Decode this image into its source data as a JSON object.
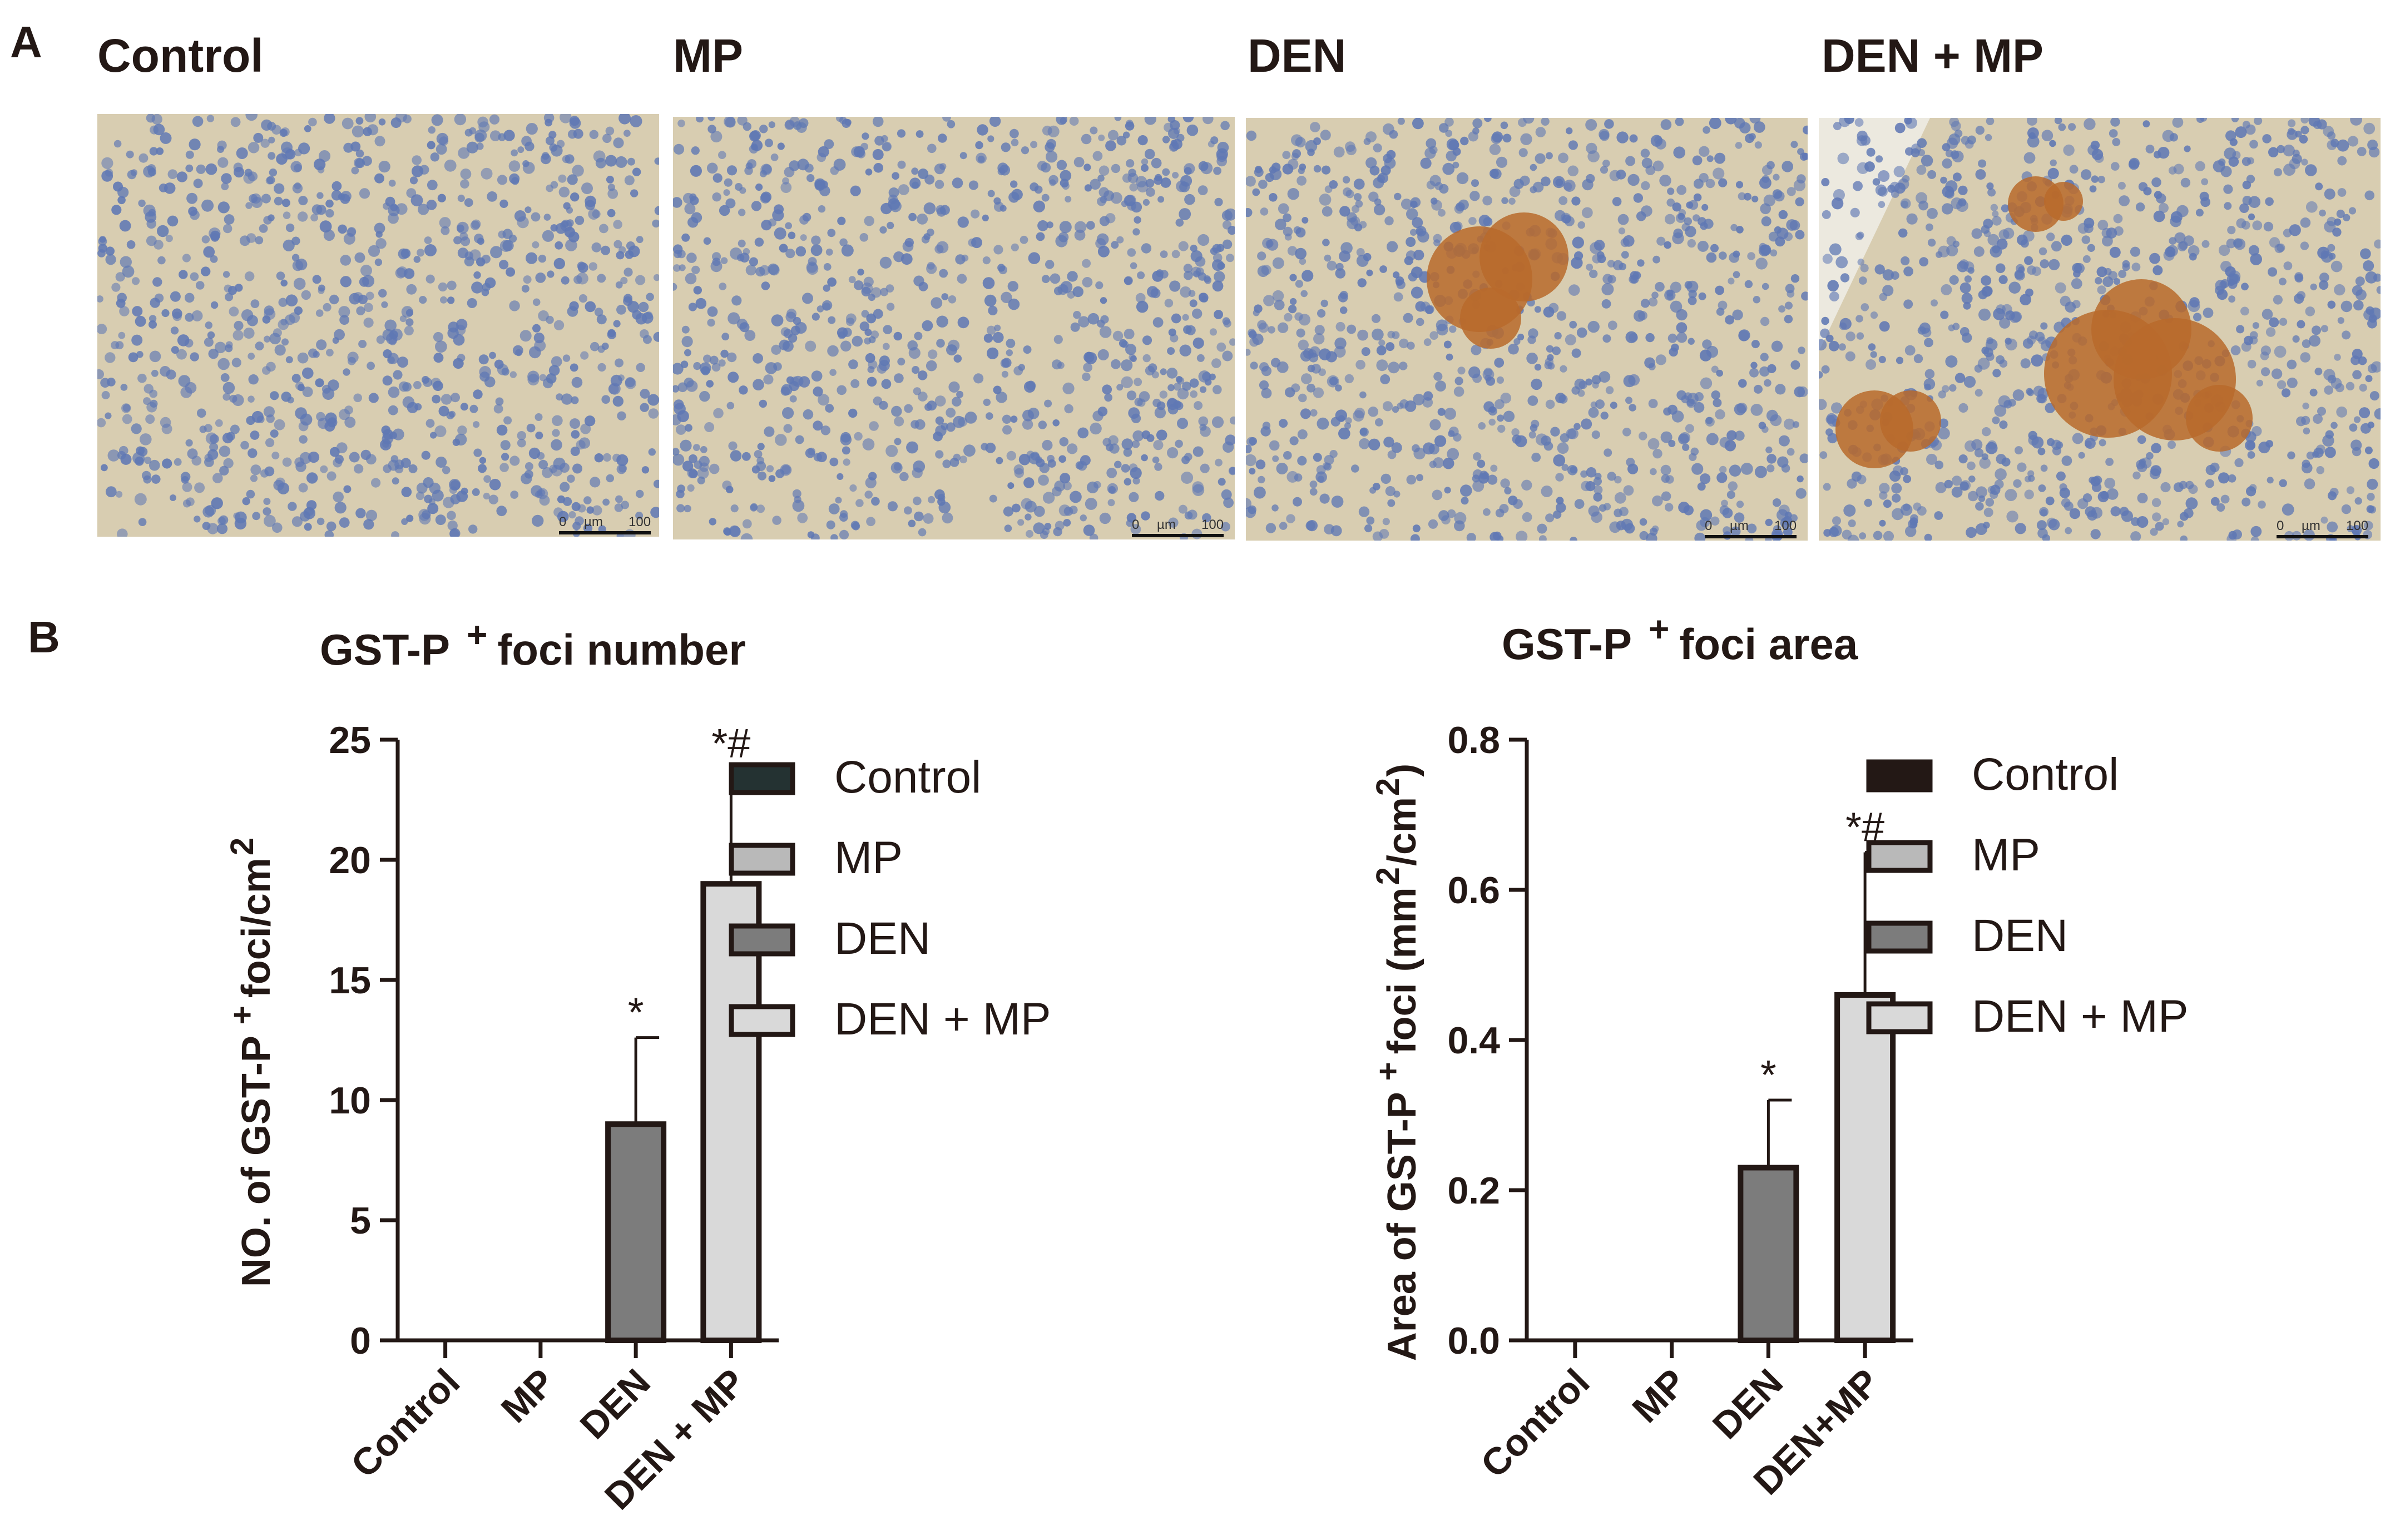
{
  "panel_a": {
    "letter": "A",
    "panels": [
      {
        "title": "Control",
        "scale": {
          "min": "0",
          "unit": "µm",
          "max": "100"
        },
        "foci": "none"
      },
      {
        "title": "MP",
        "scale": {
          "min": "0",
          "unit": "µm",
          "max": "100"
        },
        "foci": "none"
      },
      {
        "title": "DEN",
        "scale": {
          "min": "0",
          "unit": "µm",
          "max": "100"
        },
        "foci": "single"
      },
      {
        "title": "DEN + MP",
        "scale": {
          "min": "0",
          "unit": "µm",
          "max": "100"
        },
        "foci": "multiple"
      }
    ],
    "colors": {
      "tissue": "#d8cdb1",
      "nuclei": "#5f78b4",
      "stain": "#b86a2c"
    }
  },
  "panel_b": {
    "letter": "B"
  },
  "chart_data": [
    {
      "type": "bar",
      "title": "GST-P",
      "title_sup": "+",
      "title_rest": "foci number",
      "ylabel": "NO. of GST-P",
      "ylabel_sup": "+",
      "ylabel_rest": "foci/cm",
      "ylabel_sup2": "2",
      "ylim": [
        0,
        25
      ],
      "yticks": [
        "0",
        "5",
        "10",
        "15",
        "20",
        "25"
      ],
      "categories": [
        "Control",
        "MP",
        "DEN",
        "DEN + MP"
      ],
      "values": [
        0,
        0,
        9.0,
        19.0
      ],
      "errors": [
        0,
        0,
        3.6,
        4.8
      ],
      "annotations": [
        "",
        "",
        "*",
        "*#"
      ],
      "legend": [
        "Control",
        "MP",
        "DEN",
        "DEN + MP"
      ],
      "colors": [
        "#243232",
        "#b9b9b9",
        "#7c7c7c",
        "#d9d9d9"
      ],
      "legend_position": "right",
      "grid": false
    },
    {
      "type": "bar",
      "title": "GST-P",
      "title_sup": "+",
      "title_rest": "foci area",
      "ylabel": "Area of GST-P",
      "ylabel_sup": "+",
      "ylabel_rest": "foci (mm",
      "ylabel_sup2": "2",
      "ylabel_end": "/cm",
      "ylabel_sup3": "2",
      "ylabel_close": ")",
      "ylim": [
        0,
        0.8
      ],
      "yticks": [
        "0.0",
        "0.2",
        "0.4",
        "0.6",
        "0.8"
      ],
      "categories": [
        "Control",
        "MP",
        "DEN",
        "DEN+MP"
      ],
      "values": [
        0,
        0,
        0.23,
        0.46
      ],
      "errors": [
        0,
        0,
        0.09,
        0.19
      ],
      "annotations": [
        "",
        "",
        "*",
        "*#"
      ],
      "legend": [
        "Control",
        "MP",
        "DEN",
        "DEN + MP"
      ],
      "colors": [
        "#231815",
        "#b9b9b9",
        "#7c7c7c",
        "#d9d9d9"
      ],
      "legend_position": "right",
      "grid": false
    }
  ]
}
